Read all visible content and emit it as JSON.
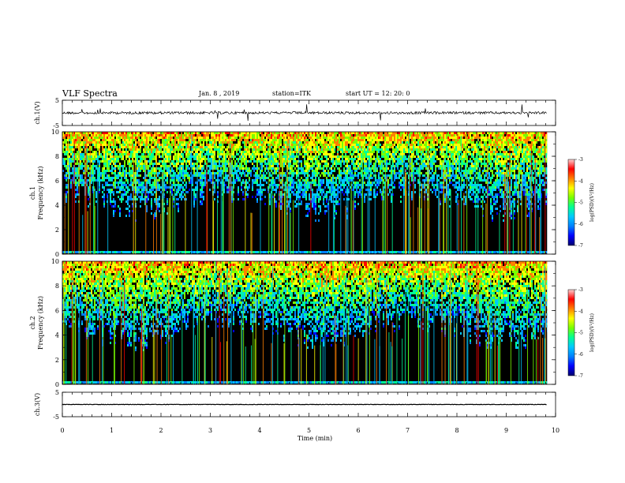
{
  "header": {
    "title": "VLF Spectra",
    "date": "Jan. 8 , 2019",
    "station": "station=ITK",
    "start": "start  UT =   12: 20: 0"
  },
  "colors": {
    "background": "#ffffff",
    "axis": "#000000",
    "spectrogram_floor": "#000000",
    "colormap": [
      "#00006e",
      "#0000ff",
      "#0080ff",
      "#00c8ff",
      "#00ff96",
      "#78ff00",
      "#ffff00",
      "#ff8000",
      "#ff0000",
      "#ffd2d2"
    ]
  },
  "chart_data": [
    {
      "type": "line",
      "panel": "ch1-waveform",
      "ylabel": "ch.1(V)",
      "ylim": [
        -5,
        5
      ],
      "yticks": [
        "5",
        "-5"
      ],
      "xlim": [
        0,
        10
      ],
      "baseline": 0,
      "description_units": "V"
    },
    {
      "type": "heatmap",
      "panel": "ch1-spectrogram",
      "ylabel": "ch.1\nFrequency (kHz)",
      "ylabel_lines": [
        "ch.1",
        "Frequency (kHz)"
      ],
      "ylim": [
        0,
        10
      ],
      "yticks": [
        "0",
        "2",
        "4",
        "6",
        "8",
        "10"
      ],
      "xlim": [
        0,
        10
      ],
      "colorbar": {
        "label": "log(PSD)(V²/Hz)",
        "range": [
          -7,
          -3
        ],
        "ticks": [
          "-3",
          "-4",
          "-5",
          "-6",
          "-7"
        ]
      }
    },
    {
      "type": "heatmap",
      "panel": "ch2-spectrogram",
      "ylabel_lines": [
        "ch.2",
        "Frequency (kHz)"
      ],
      "ylim": [
        0,
        10
      ],
      "yticks": [
        "0",
        "2",
        "4",
        "6",
        "8",
        "10"
      ],
      "xlim": [
        0,
        10
      ],
      "colorbar": {
        "label": "log(PSD)(V²/Hz)",
        "range": [
          -7,
          -3
        ],
        "ticks": [
          "-3",
          "-4",
          "-5",
          "-6",
          "-7"
        ]
      }
    },
    {
      "type": "line",
      "panel": "ch3-waveform",
      "ylabel": "ch.3(V)",
      "ylim": [
        -5,
        5
      ],
      "yticks": [
        "5",
        "-5"
      ],
      "xlim": [
        0,
        10
      ],
      "baseline": 0
    }
  ],
  "x_axis": {
    "label": "Time (min)",
    "ticks": [
      "0",
      "1",
      "2",
      "3",
      "4",
      "5",
      "6",
      "7",
      "8",
      "9",
      "10"
    ],
    "range": [
      0,
      10
    ],
    "data_end": 9.83
  }
}
